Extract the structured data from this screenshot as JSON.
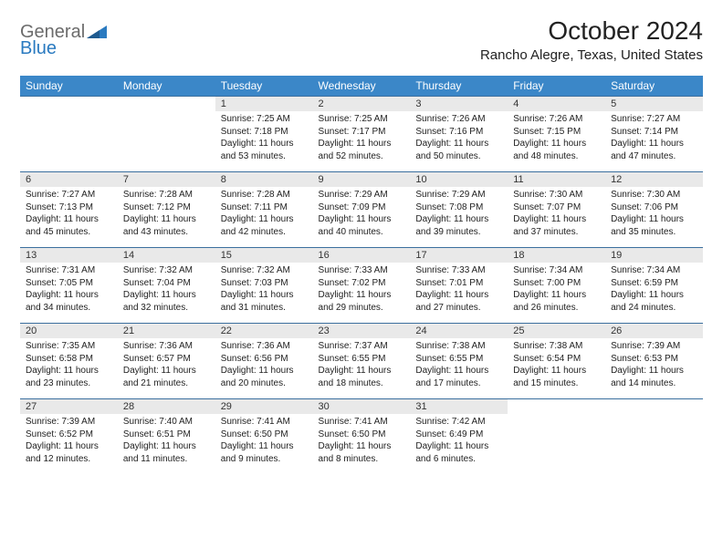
{
  "logo": {
    "line1": "General",
    "line2": "Blue",
    "icon_color": "#2a7ac0"
  },
  "title": "October 2024",
  "location": "Rancho Alegre, Texas, United States",
  "colors": {
    "header_bg": "#3b87c8",
    "header_text": "#ffffff",
    "daynum_bg": "#e9e9e9",
    "border_top": "#3b6f9e",
    "body_text": "#222222",
    "logo_gray": "#6b6b6b",
    "logo_blue": "#2a7ac0"
  },
  "fonts": {
    "title_size": 28,
    "location_size": 15,
    "dow_size": 12,
    "daynum_size": 11,
    "cell_size": 10
  },
  "dow": [
    "Sunday",
    "Monday",
    "Tuesday",
    "Wednesday",
    "Thursday",
    "Friday",
    "Saturday"
  ],
  "weeks": [
    {
      "nums": [
        "",
        "",
        "1",
        "2",
        "3",
        "4",
        "5"
      ],
      "cells": [
        null,
        null,
        {
          "sunrise": "Sunrise: 7:25 AM",
          "sunset": "Sunset: 7:18 PM",
          "day1": "Daylight: 11 hours",
          "day2": "and 53 minutes."
        },
        {
          "sunrise": "Sunrise: 7:25 AM",
          "sunset": "Sunset: 7:17 PM",
          "day1": "Daylight: 11 hours",
          "day2": "and 52 minutes."
        },
        {
          "sunrise": "Sunrise: 7:26 AM",
          "sunset": "Sunset: 7:16 PM",
          "day1": "Daylight: 11 hours",
          "day2": "and 50 minutes."
        },
        {
          "sunrise": "Sunrise: 7:26 AM",
          "sunset": "Sunset: 7:15 PM",
          "day1": "Daylight: 11 hours",
          "day2": "and 48 minutes."
        },
        {
          "sunrise": "Sunrise: 7:27 AM",
          "sunset": "Sunset: 7:14 PM",
          "day1": "Daylight: 11 hours",
          "day2": "and 47 minutes."
        }
      ]
    },
    {
      "nums": [
        "6",
        "7",
        "8",
        "9",
        "10",
        "11",
        "12"
      ],
      "cells": [
        {
          "sunrise": "Sunrise: 7:27 AM",
          "sunset": "Sunset: 7:13 PM",
          "day1": "Daylight: 11 hours",
          "day2": "and 45 minutes."
        },
        {
          "sunrise": "Sunrise: 7:28 AM",
          "sunset": "Sunset: 7:12 PM",
          "day1": "Daylight: 11 hours",
          "day2": "and 43 minutes."
        },
        {
          "sunrise": "Sunrise: 7:28 AM",
          "sunset": "Sunset: 7:11 PM",
          "day1": "Daylight: 11 hours",
          "day2": "and 42 minutes."
        },
        {
          "sunrise": "Sunrise: 7:29 AM",
          "sunset": "Sunset: 7:09 PM",
          "day1": "Daylight: 11 hours",
          "day2": "and 40 minutes."
        },
        {
          "sunrise": "Sunrise: 7:29 AM",
          "sunset": "Sunset: 7:08 PM",
          "day1": "Daylight: 11 hours",
          "day2": "and 39 minutes."
        },
        {
          "sunrise": "Sunrise: 7:30 AM",
          "sunset": "Sunset: 7:07 PM",
          "day1": "Daylight: 11 hours",
          "day2": "and 37 minutes."
        },
        {
          "sunrise": "Sunrise: 7:30 AM",
          "sunset": "Sunset: 7:06 PM",
          "day1": "Daylight: 11 hours",
          "day2": "and 35 minutes."
        }
      ]
    },
    {
      "nums": [
        "13",
        "14",
        "15",
        "16",
        "17",
        "18",
        "19"
      ],
      "cells": [
        {
          "sunrise": "Sunrise: 7:31 AM",
          "sunset": "Sunset: 7:05 PM",
          "day1": "Daylight: 11 hours",
          "day2": "and 34 minutes."
        },
        {
          "sunrise": "Sunrise: 7:32 AM",
          "sunset": "Sunset: 7:04 PM",
          "day1": "Daylight: 11 hours",
          "day2": "and 32 minutes."
        },
        {
          "sunrise": "Sunrise: 7:32 AM",
          "sunset": "Sunset: 7:03 PM",
          "day1": "Daylight: 11 hours",
          "day2": "and 31 minutes."
        },
        {
          "sunrise": "Sunrise: 7:33 AM",
          "sunset": "Sunset: 7:02 PM",
          "day1": "Daylight: 11 hours",
          "day2": "and 29 minutes."
        },
        {
          "sunrise": "Sunrise: 7:33 AM",
          "sunset": "Sunset: 7:01 PM",
          "day1": "Daylight: 11 hours",
          "day2": "and 27 minutes."
        },
        {
          "sunrise": "Sunrise: 7:34 AM",
          "sunset": "Sunset: 7:00 PM",
          "day1": "Daylight: 11 hours",
          "day2": "and 26 minutes."
        },
        {
          "sunrise": "Sunrise: 7:34 AM",
          "sunset": "Sunset: 6:59 PM",
          "day1": "Daylight: 11 hours",
          "day2": "and 24 minutes."
        }
      ]
    },
    {
      "nums": [
        "20",
        "21",
        "22",
        "23",
        "24",
        "25",
        "26"
      ],
      "cells": [
        {
          "sunrise": "Sunrise: 7:35 AM",
          "sunset": "Sunset: 6:58 PM",
          "day1": "Daylight: 11 hours",
          "day2": "and 23 minutes."
        },
        {
          "sunrise": "Sunrise: 7:36 AM",
          "sunset": "Sunset: 6:57 PM",
          "day1": "Daylight: 11 hours",
          "day2": "and 21 minutes."
        },
        {
          "sunrise": "Sunrise: 7:36 AM",
          "sunset": "Sunset: 6:56 PM",
          "day1": "Daylight: 11 hours",
          "day2": "and 20 minutes."
        },
        {
          "sunrise": "Sunrise: 7:37 AM",
          "sunset": "Sunset: 6:55 PM",
          "day1": "Daylight: 11 hours",
          "day2": "and 18 minutes."
        },
        {
          "sunrise": "Sunrise: 7:38 AM",
          "sunset": "Sunset: 6:55 PM",
          "day1": "Daylight: 11 hours",
          "day2": "and 17 minutes."
        },
        {
          "sunrise": "Sunrise: 7:38 AM",
          "sunset": "Sunset: 6:54 PM",
          "day1": "Daylight: 11 hours",
          "day2": "and 15 minutes."
        },
        {
          "sunrise": "Sunrise: 7:39 AM",
          "sunset": "Sunset: 6:53 PM",
          "day1": "Daylight: 11 hours",
          "day2": "and 14 minutes."
        }
      ]
    },
    {
      "nums": [
        "27",
        "28",
        "29",
        "30",
        "31",
        "",
        ""
      ],
      "cells": [
        {
          "sunrise": "Sunrise: 7:39 AM",
          "sunset": "Sunset: 6:52 PM",
          "day1": "Daylight: 11 hours",
          "day2": "and 12 minutes."
        },
        {
          "sunrise": "Sunrise: 7:40 AM",
          "sunset": "Sunset: 6:51 PM",
          "day1": "Daylight: 11 hours",
          "day2": "and 11 minutes."
        },
        {
          "sunrise": "Sunrise: 7:41 AM",
          "sunset": "Sunset: 6:50 PM",
          "day1": "Daylight: 11 hours",
          "day2": "and 9 minutes."
        },
        {
          "sunrise": "Sunrise: 7:41 AM",
          "sunset": "Sunset: 6:50 PM",
          "day1": "Daylight: 11 hours",
          "day2": "and 8 minutes."
        },
        {
          "sunrise": "Sunrise: 7:42 AM",
          "sunset": "Sunset: 6:49 PM",
          "day1": "Daylight: 11 hours",
          "day2": "and 6 minutes."
        },
        null,
        null
      ]
    }
  ]
}
